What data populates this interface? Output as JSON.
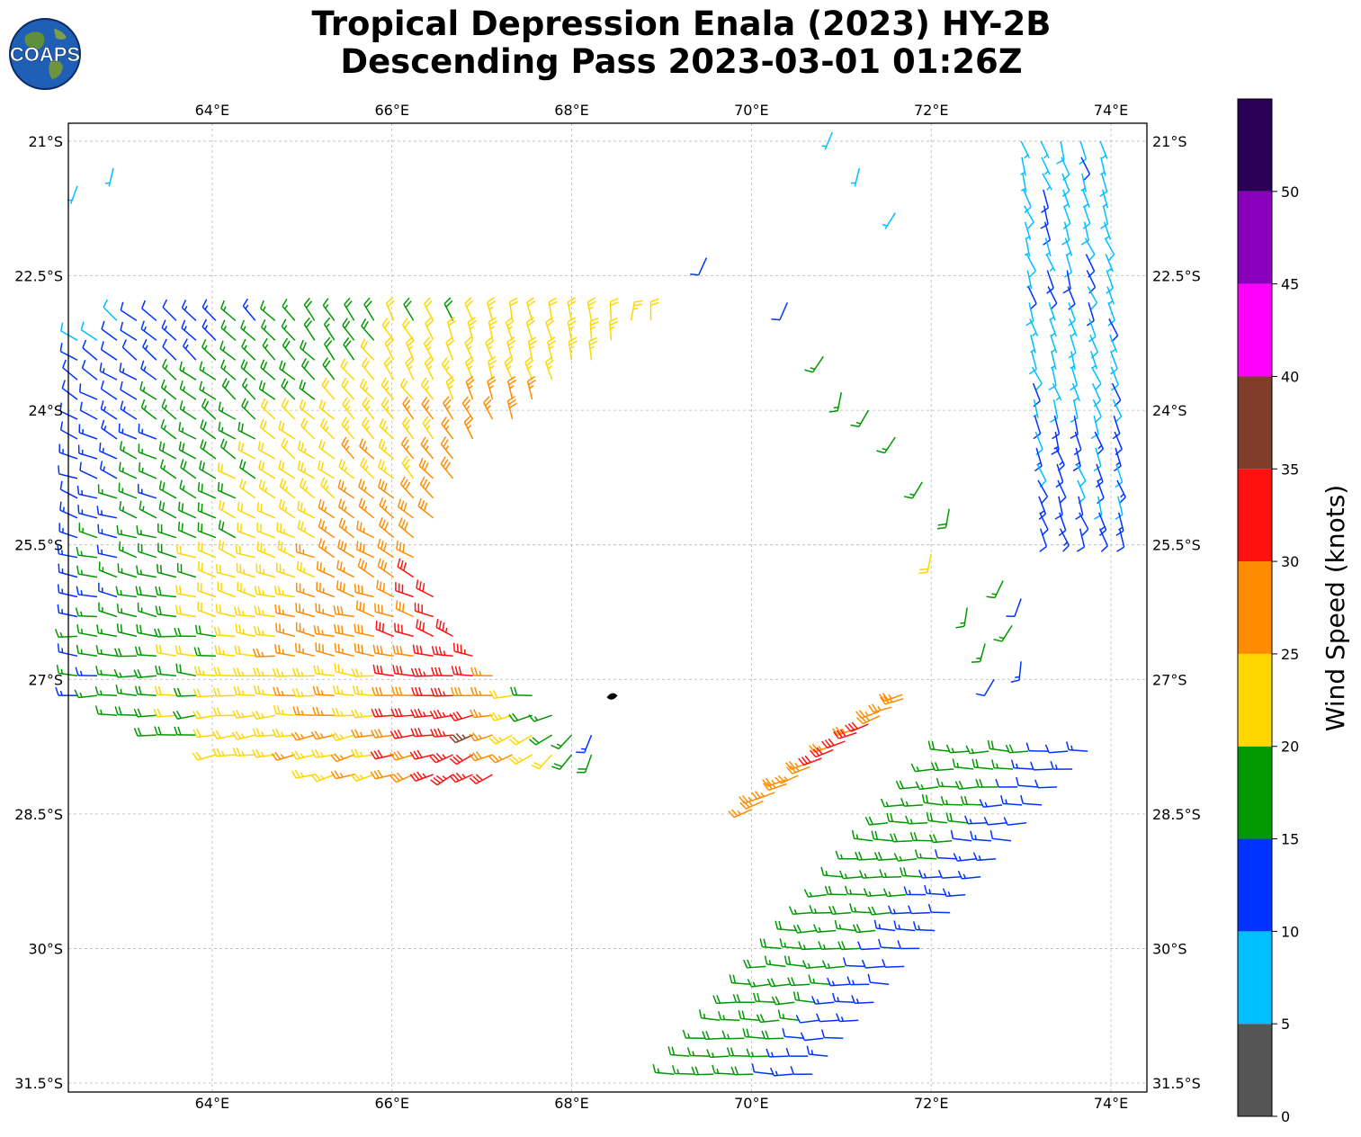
{
  "title_line1": "Tropical Depression Enala (2023) HY-2B",
  "title_line2": "Descending Pass 2023-03-01 01:26Z",
  "logo_text": "COAPS",
  "map": {
    "lon_range": [
      62.4,
      74.4
    ],
    "lat_range": [
      -31.6,
      -20.8
    ],
    "lon_ticks": [
      {
        "value": 64,
        "label": "64°E"
      },
      {
        "value": 66,
        "label": "66°E"
      },
      {
        "value": 68,
        "label": "68°E"
      },
      {
        "value": 70,
        "label": "70°E"
      },
      {
        "value": 72,
        "label": "72°E"
      },
      {
        "value": 74,
        "label": "74°E"
      }
    ],
    "lat_ticks": [
      {
        "value": -21,
        "label": "21°S"
      },
      {
        "value": -22.5,
        "label": "22.5°S"
      },
      {
        "value": -24,
        "label": "24°S"
      },
      {
        "value": -25.5,
        "label": "25.5°S"
      },
      {
        "value": -27,
        "label": "27°S"
      },
      {
        "value": -28.5,
        "label": "28.5°S"
      },
      {
        "value": -30,
        "label": "30°S"
      },
      {
        "value": -31.5,
        "label": "31.5°S"
      }
    ],
    "gridlines": true,
    "storm_center": {
      "lon": 68.45,
      "lat": -27.18
    }
  },
  "colorbar": {
    "label": "Wind Speed (knots)",
    "bins": [
      {
        "min": 0,
        "max": 5,
        "color": "#555555"
      },
      {
        "min": 5,
        "max": 10,
        "color": "#00bfff"
      },
      {
        "min": 10,
        "max": 15,
        "color": "#0033ff"
      },
      {
        "min": 15,
        "max": 20,
        "color": "#009900"
      },
      {
        "min": 20,
        "max": 25,
        "color": "#ffd700"
      },
      {
        "min": 25,
        "max": 30,
        "color": "#ff8c00"
      },
      {
        "min": 30,
        "max": 35,
        "color": "#ff1111"
      },
      {
        "min": 35,
        "max": 40,
        "color": "#803d2a"
      },
      {
        "min": 40,
        "max": 45,
        "color": "#ff00ff"
      },
      {
        "min": 45,
        "max": 50,
        "color": "#8800bb"
      },
      {
        "min": 50,
        "max": 55,
        "color": "#2a0057"
      }
    ],
    "ticks": [
      "0",
      "5",
      "10",
      "15",
      "20",
      "25",
      "30",
      "35",
      "40",
      "45",
      "50"
    ]
  }
}
